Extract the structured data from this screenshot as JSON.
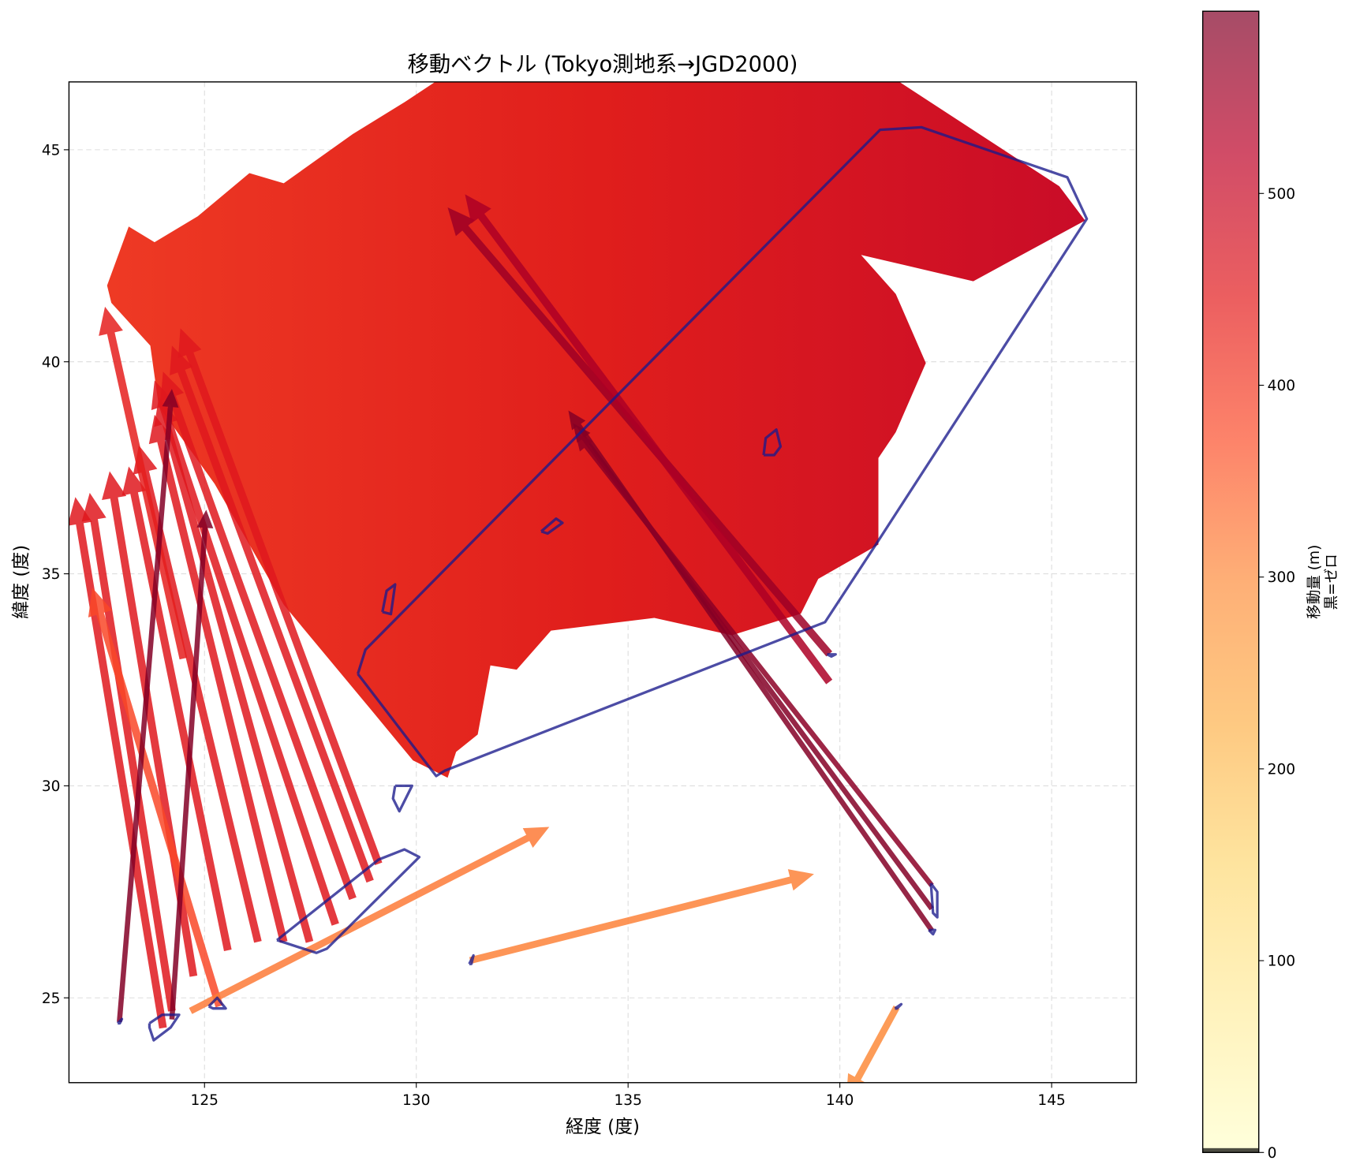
{
  "chart_data": {
    "type": "quiver",
    "title": "移動ベクトル (Tokyo測地系→JGD2000)",
    "xlabel": "経度 (度)",
    "ylabel": "緯度 (度)",
    "xlim": [
      121.8,
      147.0
    ],
    "ylim": [
      23.0,
      46.6
    ],
    "xticks": [
      125,
      130,
      135,
      140,
      145
    ],
    "yticks": [
      25,
      30,
      35,
      40,
      45
    ],
    "grid": true,
    "colorbar": {
      "label_line1": "移動量 (m)",
      "label_line2": "黒=ゼロ",
      "colormap": "YlOrRd",
      "range": [
        0,
        595
      ],
      "ticks": [
        0,
        100,
        200,
        300,
        400,
        500
      ],
      "zero_color": "#000000"
    },
    "colors": {
      "hull": "#1a1a8c",
      "grid": "#dddddd"
    },
    "dense_field": {
      "magnitude": 470,
      "region": [
        [
          122.7,
          41.8
        ],
        [
          123.21,
          43.19
        ],
        [
          123.82,
          42.82
        ],
        [
          124.84,
          43.43
        ],
        [
          126.06,
          44.45
        ],
        [
          126.87,
          44.21
        ],
        [
          128.5,
          45.37
        ],
        [
          129.72,
          46.12
        ],
        [
          130.43,
          46.59
        ],
        [
          141.42,
          46.59
        ],
        [
          145.18,
          44.14
        ],
        [
          145.79,
          43.33
        ],
        [
          143.15,
          41.9
        ],
        [
          140.5,
          42.52
        ],
        [
          141.32,
          41.6
        ],
        [
          142.03,
          39.97
        ],
        [
          141.32,
          38.34
        ],
        [
          140.91,
          37.73
        ],
        [
          140.91,
          35.69
        ],
        [
          139.49,
          34.88
        ],
        [
          139.08,
          34.06
        ],
        [
          137.45,
          33.55
        ],
        [
          135.62,
          33.96
        ],
        [
          133.18,
          33.66
        ],
        [
          132.37,
          32.74
        ],
        [
          131.75,
          32.84
        ],
        [
          131.45,
          31.21
        ],
        [
          130.94,
          30.8
        ],
        [
          130.74,
          30.19
        ],
        [
          129.92,
          30.6
        ],
        [
          128.91,
          31.82
        ],
        [
          126.87,
          34.27
        ],
        [
          125.24,
          37.12
        ],
        [
          123.92,
          38.95
        ],
        [
          123.72,
          40.38
        ],
        [
          122.8,
          41.39
        ]
      ]
    },
    "vectors": [
      {
        "from": [
          124.02,
          24.29
        ],
        "to": [
          121.95,
          36.81
        ],
        "m": 455
      },
      {
        "from": [
          124.23,
          24.69
        ],
        "to": [
          122.29,
          36.91
        ],
        "m": 455
      },
      {
        "from": [
          124.74,
          25.51
        ],
        "to": [
          122.76,
          37.42
        ],
        "m": 455
      },
      {
        "from": [
          125.55,
          26.12
        ],
        "to": [
          123.21,
          37.53
        ],
        "m": 455
      },
      {
        "from": [
          126.26,
          26.32
        ],
        "to": [
          123.45,
          38.03
        ],
        "m": 455
      },
      {
        "from": [
          126.87,
          26.32
        ],
        "to": [
          123.82,
          38.75
        ],
        "m": 455
      },
      {
        "from": [
          127.48,
          26.32
        ],
        "to": [
          123.92,
          39.16
        ],
        "m": 455
      },
      {
        "from": [
          128.09,
          26.73
        ],
        "to": [
          123.82,
          39.56
        ],
        "m": 455
      },
      {
        "from": [
          128.5,
          27.34
        ],
        "to": [
          124.02,
          39.77
        ],
        "m": 455
      },
      {
        "from": [
          128.91,
          27.75
        ],
        "to": [
          124.23,
          40.38
        ],
        "m": 455
      },
      {
        "from": [
          129.11,
          28.16
        ],
        "to": [
          124.43,
          40.79
        ],
        "m": 455
      },
      {
        "from": [
          121.8,
          30.6
        ],
        "to": [
          121.8,
          30.6
        ],
        "m": 455
      },
      {
        "from": [
          124.5,
          33.0
        ],
        "to": [
          122.65,
          41.3
        ],
        "m": 440
      },
      {
        "from": [
          125.35,
          24.8
        ],
        "to": [
          122.35,
          34.67
        ],
        "m": 380
      },
      {
        "from": [
          122.99,
          24.43
        ],
        "to": [
          124.23,
          39.36
        ],
        "m": 590
      },
      {
        "from": [
          124.23,
          24.49
        ],
        "to": [
          125.04,
          36.51
        ],
        "m": 590
      },
      {
        "from": [
          142.17,
          26.59
        ],
        "to": [
          133.59,
          38.85
        ],
        "m": 590
      },
      {
        "from": [
          142.17,
          27.1
        ],
        "to": [
          133.7,
          38.55
        ],
        "m": 590
      },
      {
        "from": [
          142.17,
          27.65
        ],
        "to": [
          133.75,
          38.34
        ],
        "m": 580
      },
      {
        "from": [
          139.75,
          33.11
        ],
        "to": [
          130.74,
          43.64
        ],
        "m": 560
      },
      {
        "from": [
          139.75,
          32.45
        ],
        "to": [
          131.15,
          43.95
        ],
        "m": 540
      },
      {
        "from": [
          131.27,
          25.88
        ],
        "to": [
          139.39,
          27.92
        ],
        "m": 310
      },
      {
        "from": [
          124.67,
          24.69
        ],
        "to": [
          133.14,
          29.03
        ],
        "m": 320
      },
      {
        "from": [
          141.34,
          24.78
        ],
        "to": [
          140.15,
          22.6
        ],
        "m": 300
      }
    ],
    "hulls": [
      [
        [
          128.62,
          32.64
        ],
        [
          128.8,
          33.21
        ],
        [
          140.95,
          45.47
        ],
        [
          141.93,
          45.53
        ],
        [
          145.37,
          44.35
        ],
        [
          145.83,
          43.37
        ],
        [
          140.85,
          35.69
        ],
        [
          139.65,
          33.86
        ],
        [
          130.68,
          30.36
        ],
        [
          130.47,
          30.23
        ],
        [
          128.62,
          32.64
        ]
      ],
      [
        [
          126.71,
          26.36
        ],
        [
          129.11,
          28.26
        ],
        [
          129.72,
          28.5
        ],
        [
          130.07,
          28.32
        ],
        [
          127.89,
          26.16
        ],
        [
          127.64,
          26.06
        ],
        [
          126.71,
          26.36
        ]
      ],
      [
        [
          129.2,
          34.1
        ],
        [
          129.3,
          34.6
        ],
        [
          129.5,
          34.75
        ],
        [
          129.4,
          34.05
        ],
        [
          129.2,
          34.1
        ]
      ],
      [
        [
          132.95,
          36.0
        ],
        [
          133.3,
          36.3
        ],
        [
          133.45,
          36.2
        ],
        [
          133.1,
          35.95
        ],
        [
          132.95,
          36.0
        ]
      ],
      [
        [
          138.2,
          37.8
        ],
        [
          138.25,
          38.2
        ],
        [
          138.5,
          38.4
        ],
        [
          138.6,
          38.0
        ],
        [
          138.45,
          37.8
        ],
        [
          138.2,
          37.8
        ]
      ],
      [
        [
          129.5,
          30.0
        ],
        [
          129.9,
          30.0
        ],
        [
          129.6,
          29.4
        ],
        [
          129.45,
          29.7
        ],
        [
          129.5,
          30.0
        ]
      ],
      [
        [
          123.7,
          24.4
        ],
        [
          124.0,
          24.6
        ],
        [
          124.4,
          24.6
        ],
        [
          124.2,
          24.3
        ],
        [
          123.8,
          24.0
        ],
        [
          123.7,
          24.3
        ],
        [
          123.7,
          24.4
        ]
      ],
      [
        [
          125.1,
          24.8
        ],
        [
          125.3,
          25.0
        ],
        [
          125.5,
          24.75
        ],
        [
          125.2,
          24.75
        ],
        [
          125.1,
          24.8
        ]
      ],
      [
        [
          142.15,
          27.7
        ],
        [
          142.3,
          27.5
        ],
        [
          142.3,
          26.9
        ],
        [
          142.2,
          27.0
        ],
        [
          142.15,
          27.7
        ]
      ],
      [
        [
          131.25,
          25.8
        ],
        [
          131.35,
          26.0
        ],
        [
          131.3,
          25.8
        ],
        [
          131.25,
          25.8
        ]
      ],
      [
        [
          122.95,
          24.4
        ],
        [
          123.05,
          24.5
        ],
        [
          123.0,
          24.4
        ],
        [
          122.95,
          24.4
        ]
      ],
      [
        [
          141.3,
          24.75
        ],
        [
          141.45,
          24.85
        ],
        [
          141.35,
          24.75
        ],
        [
          141.3,
          24.75
        ]
      ],
      [
        [
          139.7,
          33.1
        ],
        [
          139.9,
          33.1
        ],
        [
          139.8,
          33.05
        ],
        [
          139.7,
          33.1
        ]
      ],
      [
        [
          142.1,
          26.6
        ],
        [
          142.25,
          26.6
        ],
        [
          142.2,
          26.5
        ],
        [
          142.1,
          26.6
        ]
      ]
    ]
  }
}
